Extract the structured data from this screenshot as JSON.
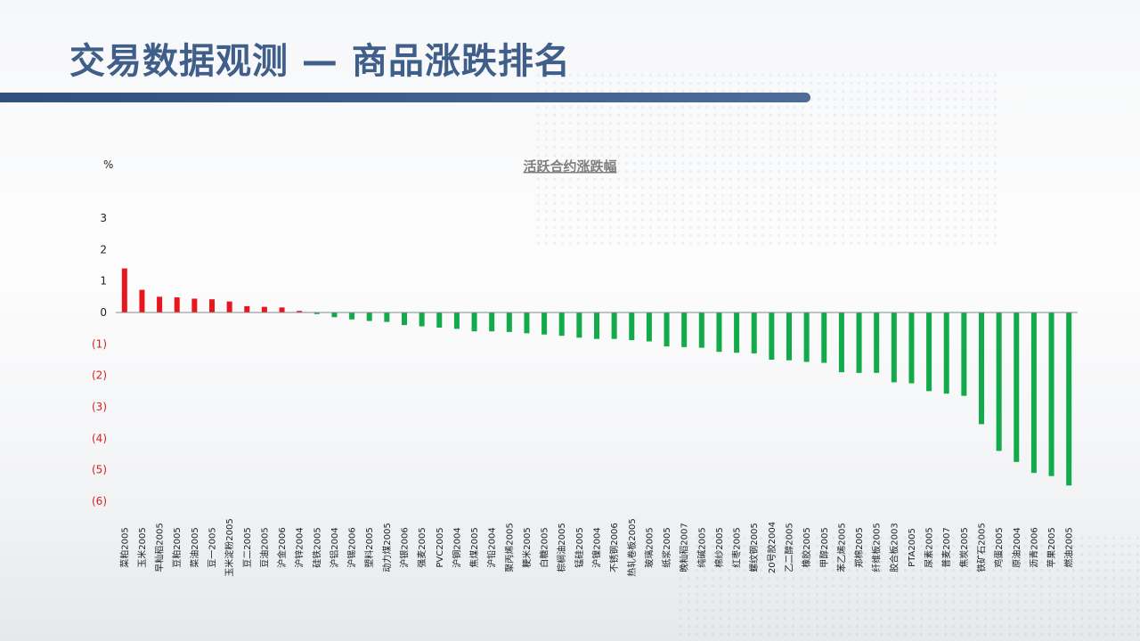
{
  "header": {
    "title": "交易数据观测 — 商品涨跌排名"
  },
  "colors": {
    "title": "#3f5f8a",
    "positive_bar": "#e8161d",
    "negative_bar": "#12aa4a",
    "positive_label": "#222222",
    "negative_label": "#d42020"
  },
  "chart_data": {
    "type": "bar",
    "title": "活跃合约涨跌幅",
    "unit_label": "%",
    "xlabel": "",
    "ylabel": "",
    "ylim": [
      -6,
      3
    ],
    "yticks": [
      {
        "value": 3,
        "label": "3"
      },
      {
        "value": 2,
        "label": "2"
      },
      {
        "value": 1,
        "label": "1"
      },
      {
        "value": 0,
        "label": "0"
      },
      {
        "value": -1,
        "label": "(1)"
      },
      {
        "value": -2,
        "label": "(2)"
      },
      {
        "value": -3,
        "label": "(3)"
      },
      {
        "value": -4,
        "label": "(4)"
      },
      {
        "value": -5,
        "label": "(5)"
      },
      {
        "value": -6,
        "label": "(6)"
      }
    ],
    "grid": false,
    "categories": [
      "菜粕2005",
      "玉米2005",
      "早籼稻2005",
      "豆粕2005",
      "菜油2005",
      "豆一2005",
      "玉米淀粉2005",
      "豆二2005",
      "豆油2005",
      "沪金2006",
      "沪锌2004",
      "硅铁2005",
      "沪铝2004",
      "沪锡2006",
      "塑料2005",
      "动力煤2005",
      "沪银2006",
      "强麦2005",
      "PVC2005",
      "沪铜2004",
      "焦煤2005",
      "沪铅2004",
      "聚丙烯2005",
      "粳米2005",
      "白糖2005",
      "棕榈油2005",
      "锰硅2005",
      "沪镍2004",
      "不锈钢2006",
      "热轧卷板2005",
      "玻璃2005",
      "纸浆2005",
      "晚籼稻2007",
      "纯碱2005",
      "棉纱2005",
      "红枣2005",
      "螺纹钢2005",
      "20号胶2004",
      "乙二醇2005",
      "橡胶2005",
      "甲醇2005",
      "苯乙烯2005",
      "郑棉2005",
      "纤维板2005",
      "胶合板2003",
      "PTA2005",
      "尿素2005",
      "普麦2007",
      "焦炭2005",
      "铁矿石2005",
      "鸡蛋2005",
      "原油2004",
      "沥青2006",
      "苹果2005",
      "燃油2005"
    ],
    "values": [
      1.4,
      0.72,
      0.5,
      0.48,
      0.44,
      0.42,
      0.35,
      0.2,
      0.18,
      0.16,
      0.05,
      -0.05,
      -0.15,
      -0.22,
      -0.27,
      -0.3,
      -0.4,
      -0.44,
      -0.48,
      -0.52,
      -0.6,
      -0.6,
      -0.62,
      -0.66,
      -0.7,
      -0.74,
      -0.8,
      -0.84,
      -0.84,
      -0.88,
      -0.92,
      -1.08,
      -1.1,
      -1.12,
      -1.25,
      -1.28,
      -1.3,
      -1.5,
      -1.52,
      -1.57,
      -1.6,
      -1.9,
      -1.92,
      -1.92,
      -2.22,
      -2.25,
      -2.5,
      -2.58,
      -2.65,
      -3.55,
      -4.4,
      -4.75,
      -5.1,
      -5.2,
      -5.5
    ]
  }
}
